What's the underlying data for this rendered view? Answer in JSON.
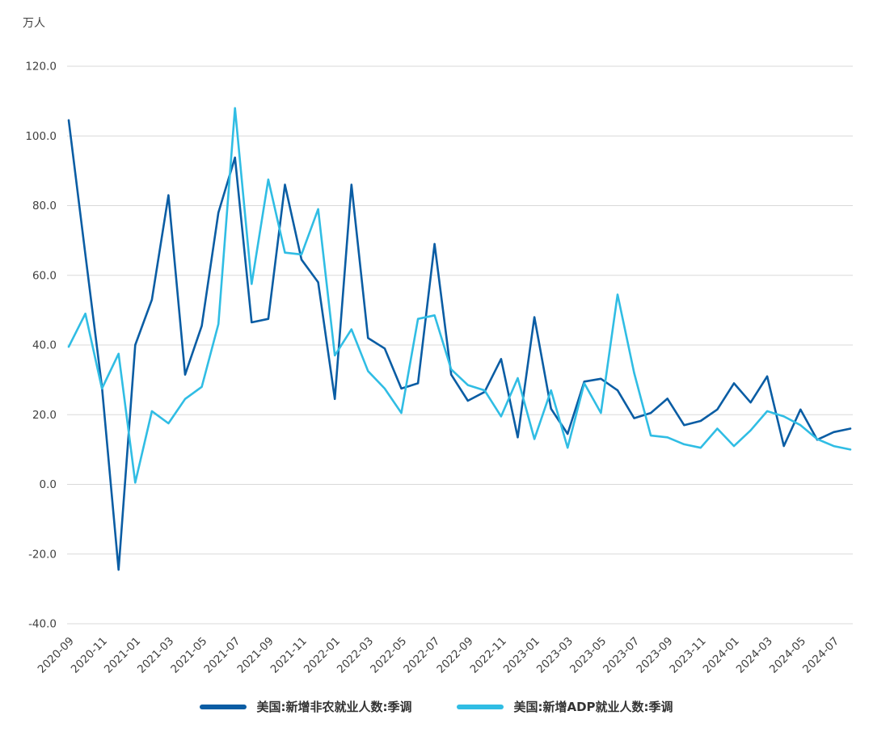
{
  "chart": {
    "unit": "万人",
    "colors": {
      "nonfarm": "#0a5da4",
      "adp": "#30bde4",
      "grid": "#d9d9d9",
      "text": "#404040"
    }
  },
  "chart_data": {
    "type": "line",
    "title": "",
    "ylabel": "万人",
    "xlabel": "",
    "ylim": [
      -40,
      120
    ],
    "ytick_step": 20,
    "xtick_every": 2,
    "grid": true,
    "legend_position": "bottom",
    "x": [
      "2020-09",
      "2020-10",
      "2020-11",
      "2020-12",
      "2021-01",
      "2021-02",
      "2021-03",
      "2021-04",
      "2021-05",
      "2021-06",
      "2021-07",
      "2021-08",
      "2021-09",
      "2021-10",
      "2021-11",
      "2021-12",
      "2022-01",
      "2022-02",
      "2022-03",
      "2022-04",
      "2022-05",
      "2022-06",
      "2022-07",
      "2022-08",
      "2022-09",
      "2022-10",
      "2022-11",
      "2022-12",
      "2023-01",
      "2023-02",
      "2023-03",
      "2023-04",
      "2023-05",
      "2023-06",
      "2023-07",
      "2023-08",
      "2023-09",
      "2023-10",
      "2023-11",
      "2023-12",
      "2024-01",
      "2024-02",
      "2024-03",
      "2024-04",
      "2024-05",
      "2024-06",
      "2024-07",
      "2024-08"
    ],
    "series": [
      {
        "id": "nonfarm-payrolls-line",
        "name": "美国:新增非农就业人数:季调",
        "color": "#0a5da4",
        "values": [
          104.5,
          66.0,
          28.0,
          -24.5,
          40.0,
          53.0,
          83.0,
          31.5,
          45.5,
          78.0,
          93.8,
          46.5,
          47.5,
          86.0,
          64.5,
          58.0,
          24.5,
          86.0,
          42.0,
          39.0,
          27.5,
          29.0,
          69.0,
          31.5,
          24.0,
          26.5,
          36.0,
          13.5,
          48.0,
          21.7,
          14.5,
          29.5,
          30.3,
          27.0,
          19.0,
          20.5,
          24.6,
          17.0,
          18.2,
          21.5,
          29.0,
          23.5,
          31.0,
          11.0,
          21.5,
          12.8,
          15.0,
          16.0
        ]
      },
      {
        "id": "adp-employment-line",
        "name": "美国:新增ADP就业人数:季调",
        "color": "#30bde4",
        "values": [
          39.5,
          49.0,
          27.5,
          37.5,
          0.5,
          21.0,
          17.5,
          24.5,
          28.0,
          46.0,
          108.0,
          57.5,
          87.5,
          66.5,
          66.0,
          79.0,
          37.0,
          44.5,
          32.5,
          27.5,
          20.5,
          47.5,
          48.5,
          33.0,
          28.5,
          27.0,
          19.5,
          30.5,
          13.0,
          27.0,
          10.5,
          29.0,
          20.5,
          54.5,
          32.0,
          14.0,
          13.5,
          11.5,
          10.5,
          16.0,
          11.0,
          15.5,
          21.0,
          19.5,
          17.0,
          13.0,
          11.0,
          10.0
        ]
      }
    ]
  }
}
